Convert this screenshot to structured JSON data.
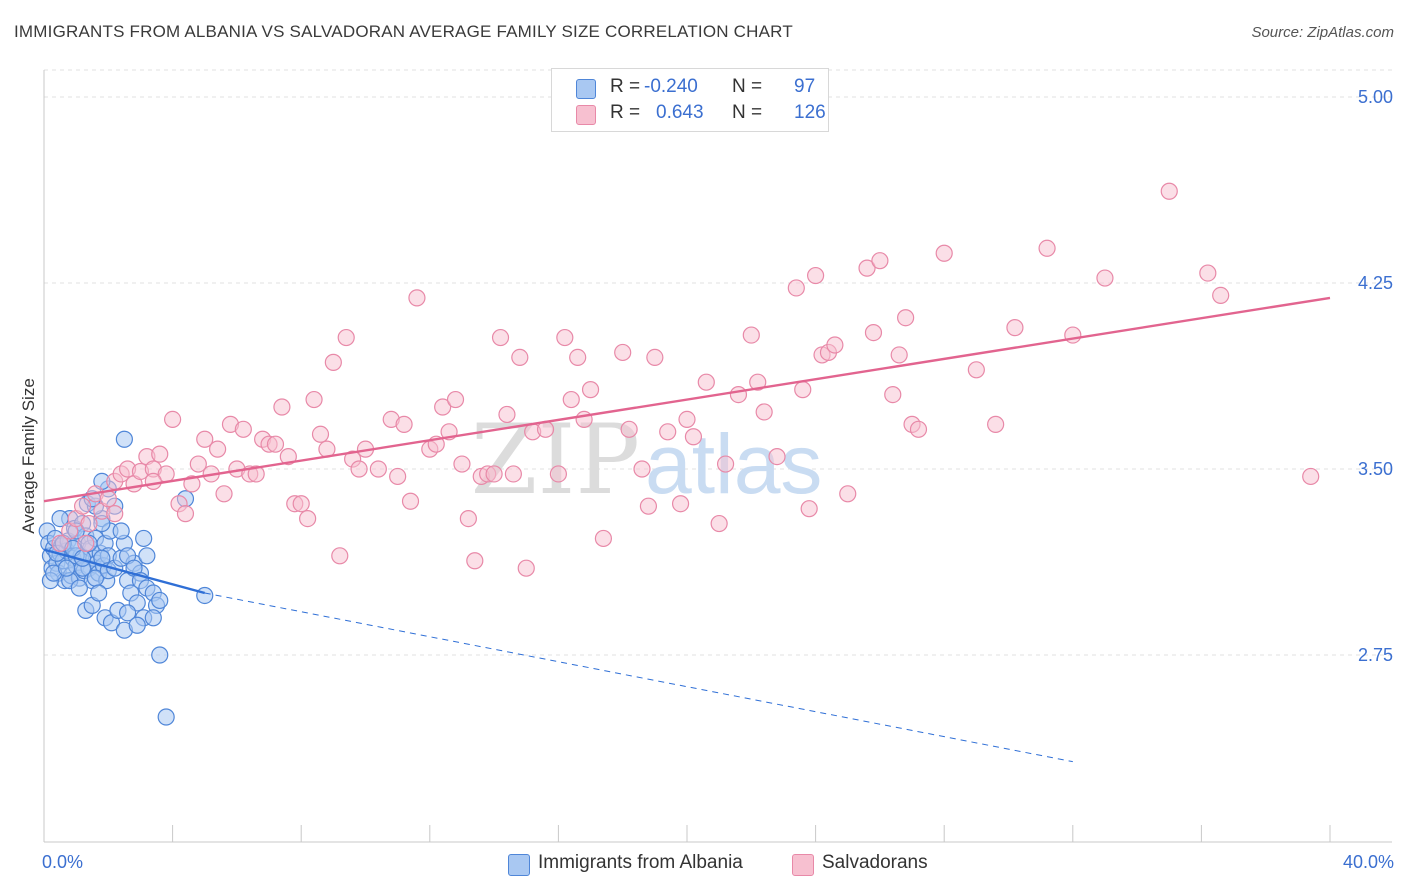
{
  "header": {
    "title": "IMMIGRANTS FROM ALBANIA VS SALVADORAN AVERAGE FAMILY SIZE CORRELATION CHART",
    "source": "Source: ZipAtlas.com"
  },
  "watermark": {
    "part1": "ZIP",
    "part2": "atlas"
  },
  "colors": {
    "albania_fill": "#a9c8f2",
    "albania_stroke": "#4f86d8",
    "albania_line": "#2f6fd6",
    "salvador_fill": "#f7c0d0",
    "salvador_stroke": "#e889a8",
    "salvador_line": "#e2648f",
    "axis_label": "#3b6fd0",
    "grid": "#e0e0e0"
  },
  "legend": {
    "rows": [
      {
        "r_label": "R =",
        "r_value": "-0.240",
        "n_label": "N =",
        "n_value": "97"
      },
      {
        "r_label": "R =",
        "r_value": "0.643",
        "n_label": "N =",
        "n_value": "126"
      }
    ]
  },
  "bottom_legend": {
    "series_a": "Immigrants from Albania",
    "series_b": "Salvadorans"
  },
  "chart_data": {
    "type": "scatter",
    "title": "IMMIGRANTS FROM ALBANIA VS SALVADORAN AVERAGE FAMILY SIZE CORRELATION CHART",
    "xlabel": "",
    "ylabel": "Average Family Size",
    "xlim": [
      0,
      40
    ],
    "ylim": [
      2.3,
      5.05
    ],
    "x_tick_labels": [
      "0.0%",
      "40.0%"
    ],
    "y_ticks": [
      2.75,
      3.5,
      4.25,
      5.0
    ],
    "y_tick_labels": [
      "2.75",
      "3.50",
      "4.25",
      "5.00"
    ],
    "grid": "horizontal dashed",
    "legend_position": "top-center",
    "series": [
      {
        "name": "Immigrants from Albania",
        "r": -0.24,
        "n": 97,
        "trend_solid": {
          "x": [
            0.0,
            5.0
          ],
          "y": [
            3.175,
            3.0
          ]
        },
        "trend_dashed": {
          "x": [
            5.0,
            32.0
          ],
          "y": [
            3.0,
            2.32
          ]
        },
        "points": [
          [
            0.1,
            3.25
          ],
          [
            0.15,
            3.2
          ],
          [
            0.2,
            3.15
          ],
          [
            0.25,
            3.1
          ],
          [
            0.3,
            3.18
          ],
          [
            0.35,
            3.22
          ],
          [
            0.4,
            3.12
          ],
          [
            0.45,
            3.08
          ],
          [
            0.5,
            3.16
          ],
          [
            0.55,
            3.19
          ],
          [
            0.6,
            3.13
          ],
          [
            0.65,
            3.05
          ],
          [
            0.7,
            3.17
          ],
          [
            0.75,
            3.21
          ],
          [
            0.8,
            3.3
          ],
          [
            0.85,
            3.07
          ],
          [
            0.9,
            3.14
          ],
          [
            0.95,
            3.26
          ],
          [
            1.0,
            3.11
          ],
          [
            1.05,
            3.2
          ],
          [
            1.1,
            3.06
          ],
          [
            1.15,
            3.15
          ],
          [
            1.2,
            3.28
          ],
          [
            1.25,
            3.09
          ],
          [
            1.3,
            3.23
          ],
          [
            1.35,
            3.36
          ],
          [
            1.4,
            3.1
          ],
          [
            1.45,
            3.18
          ],
          [
            1.5,
            3.05
          ],
          [
            1.55,
            3.14
          ],
          [
            1.6,
            3.22
          ],
          [
            1.65,
            3.12
          ],
          [
            1.7,
            3.08
          ],
          [
            1.75,
            3.16
          ],
          [
            1.8,
            3.3
          ],
          [
            1.85,
            3.11
          ],
          [
            1.9,
            3.2
          ],
          [
            1.95,
            3.05
          ],
          [
            2.0,
            3.15
          ],
          [
            2.05,
            3.25
          ],
          [
            0.2,
            3.05
          ],
          [
            0.4,
            3.16
          ],
          [
            0.6,
            3.2
          ],
          [
            0.8,
            3.05
          ],
          [
            1.0,
            3.15
          ],
          [
            1.2,
            3.1
          ],
          [
            1.4,
            3.2
          ],
          [
            1.6,
            3.06
          ],
          [
            1.8,
            3.14
          ],
          [
            2.0,
            3.09
          ],
          [
            2.2,
            3.1
          ],
          [
            2.4,
            3.14
          ],
          [
            2.6,
            3.05
          ],
          [
            2.8,
            3.12
          ],
          [
            3.0,
            3.08
          ],
          [
            3.2,
            3.15
          ],
          [
            2.5,
            3.2
          ],
          [
            2.7,
            3.0
          ],
          [
            2.9,
            2.96
          ],
          [
            3.1,
            2.9
          ],
          [
            1.1,
            3.02
          ],
          [
            1.3,
            2.93
          ],
          [
            1.5,
            2.95
          ],
          [
            1.7,
            3.0
          ],
          [
            1.9,
            2.9
          ],
          [
            2.1,
            2.88
          ],
          [
            2.3,
            2.93
          ],
          [
            2.5,
            2.85
          ],
          [
            2.6,
            2.92
          ],
          [
            2.9,
            2.87
          ],
          [
            1.6,
            3.35
          ],
          [
            2.0,
            3.42
          ],
          [
            2.2,
            3.35
          ],
          [
            1.8,
            3.28
          ],
          [
            2.4,
            3.25
          ],
          [
            2.6,
            3.15
          ],
          [
            2.8,
            3.1
          ],
          [
            3.0,
            3.05
          ],
          [
            3.2,
            3.02
          ],
          [
            3.4,
            3.0
          ],
          [
            3.5,
            2.95
          ],
          [
            3.4,
            2.9
          ],
          [
            3.6,
            2.97
          ],
          [
            3.6,
            2.75
          ],
          [
            3.8,
            2.5
          ],
          [
            4.4,
            3.38
          ],
          [
            5.0,
            2.99
          ],
          [
            2.5,
            3.62
          ],
          [
            1.8,
            3.45
          ],
          [
            1.5,
            3.38
          ],
          [
            0.5,
            3.3
          ],
          [
            0.3,
            3.08
          ],
          [
            0.7,
            3.1
          ],
          [
            0.9,
            3.18
          ],
          [
            1.2,
            3.14
          ],
          [
            1.0,
            3.25
          ],
          [
            3.1,
            3.22
          ]
        ]
      },
      {
        "name": "Salvadorans",
        "r": 0.643,
        "n": 126,
        "trend": {
          "x": [
            0.0,
            40.0
          ],
          "y": [
            3.37,
            4.19
          ]
        },
        "points": [
          [
            0.5,
            3.2
          ],
          [
            0.8,
            3.25
          ],
          [
            1.0,
            3.3
          ],
          [
            1.2,
            3.35
          ],
          [
            1.4,
            3.28
          ],
          [
            1.6,
            3.4
          ],
          [
            1.8,
            3.33
          ],
          [
            2.0,
            3.38
          ],
          [
            2.2,
            3.45
          ],
          [
            2.4,
            3.48
          ],
          [
            2.6,
            3.5
          ],
          [
            2.8,
            3.44
          ],
          [
            3.0,
            3.49
          ],
          [
            3.2,
            3.55
          ],
          [
            3.4,
            3.5
          ],
          [
            3.6,
            3.56
          ],
          [
            3.8,
            3.48
          ],
          [
            4.0,
            3.7
          ],
          [
            4.2,
            3.36
          ],
          [
            4.4,
            3.32
          ],
          [
            4.6,
            3.44
          ],
          [
            4.8,
            3.52
          ],
          [
            5.0,
            3.62
          ],
          [
            5.2,
            3.48
          ],
          [
            5.4,
            3.58
          ],
          [
            5.6,
            3.4
          ],
          [
            5.8,
            3.68
          ],
          [
            6.0,
            3.5
          ],
          [
            6.2,
            3.66
          ],
          [
            6.4,
            3.48
          ],
          [
            6.6,
            3.48
          ],
          [
            6.8,
            3.62
          ],
          [
            7.0,
            3.6
          ],
          [
            7.2,
            3.6
          ],
          [
            7.4,
            3.75
          ],
          [
            7.6,
            3.55
          ],
          [
            7.8,
            3.36
          ],
          [
            8.0,
            3.36
          ],
          [
            8.2,
            3.3
          ],
          [
            8.4,
            3.78
          ],
          [
            8.6,
            3.64
          ],
          [
            8.8,
            3.58
          ],
          [
            9.0,
            3.93
          ],
          [
            9.2,
            3.15
          ],
          [
            9.4,
            4.03
          ],
          [
            9.6,
            3.54
          ],
          [
            9.8,
            3.5
          ],
          [
            10.0,
            3.58
          ],
          [
            10.4,
            3.5
          ],
          [
            10.8,
            3.7
          ],
          [
            11.0,
            3.47
          ],
          [
            11.2,
            3.68
          ],
          [
            11.4,
            3.37
          ],
          [
            11.6,
            4.19
          ],
          [
            12.0,
            3.58
          ],
          [
            12.2,
            3.6
          ],
          [
            12.4,
            3.75
          ],
          [
            12.6,
            3.65
          ],
          [
            12.8,
            3.78
          ],
          [
            13.0,
            3.52
          ],
          [
            13.2,
            3.3
          ],
          [
            13.4,
            3.13
          ],
          [
            13.6,
            3.47
          ],
          [
            13.8,
            3.48
          ],
          [
            14.0,
            3.48
          ],
          [
            14.2,
            4.03
          ],
          [
            14.4,
            3.72
          ],
          [
            14.6,
            3.48
          ],
          [
            14.8,
            3.95
          ],
          [
            15.0,
            3.1
          ],
          [
            15.2,
            3.65
          ],
          [
            15.6,
            3.66
          ],
          [
            16.0,
            3.48
          ],
          [
            16.2,
            4.03
          ],
          [
            16.4,
            3.78
          ],
          [
            16.6,
            3.95
          ],
          [
            16.8,
            3.7
          ],
          [
            17.0,
            3.82
          ],
          [
            17.4,
            3.22
          ],
          [
            18.0,
            3.97
          ],
          [
            18.2,
            3.66
          ],
          [
            18.6,
            3.5
          ],
          [
            18.8,
            3.35
          ],
          [
            19.0,
            3.95
          ],
          [
            19.4,
            3.65
          ],
          [
            19.8,
            3.36
          ],
          [
            20.0,
            3.7
          ],
          [
            20.2,
            3.63
          ],
          [
            20.6,
            3.85
          ],
          [
            21.0,
            3.28
          ],
          [
            21.2,
            3.52
          ],
          [
            21.6,
            3.8
          ],
          [
            22.0,
            4.04
          ],
          [
            22.2,
            3.85
          ],
          [
            22.4,
            3.73
          ],
          [
            22.8,
            3.55
          ],
          [
            23.4,
            4.23
          ],
          [
            23.6,
            3.82
          ],
          [
            23.8,
            3.34
          ],
          [
            24.0,
            4.28
          ],
          [
            24.2,
            3.96
          ],
          [
            24.4,
            3.97
          ],
          [
            24.6,
            4.0
          ],
          [
            25.0,
            3.4
          ],
          [
            25.6,
            4.31
          ],
          [
            25.8,
            4.05
          ],
          [
            26.0,
            4.34
          ],
          [
            26.4,
            3.8
          ],
          [
            26.6,
            3.96
          ],
          [
            26.8,
            4.11
          ],
          [
            27.0,
            3.68
          ],
          [
            27.2,
            3.66
          ],
          [
            28.0,
            4.37
          ],
          [
            29.0,
            3.9
          ],
          [
            29.6,
            3.68
          ],
          [
            30.2,
            4.07
          ],
          [
            31.2,
            4.39
          ],
          [
            32.0,
            4.04
          ],
          [
            33.0,
            4.27
          ],
          [
            35.0,
            4.62
          ],
          [
            36.2,
            4.29
          ],
          [
            36.6,
            4.2
          ],
          [
            39.4,
            3.47
          ],
          [
            1.3,
            3.2
          ],
          [
            2.2,
            3.32
          ],
          [
            3.4,
            3.45
          ]
        ]
      }
    ]
  }
}
